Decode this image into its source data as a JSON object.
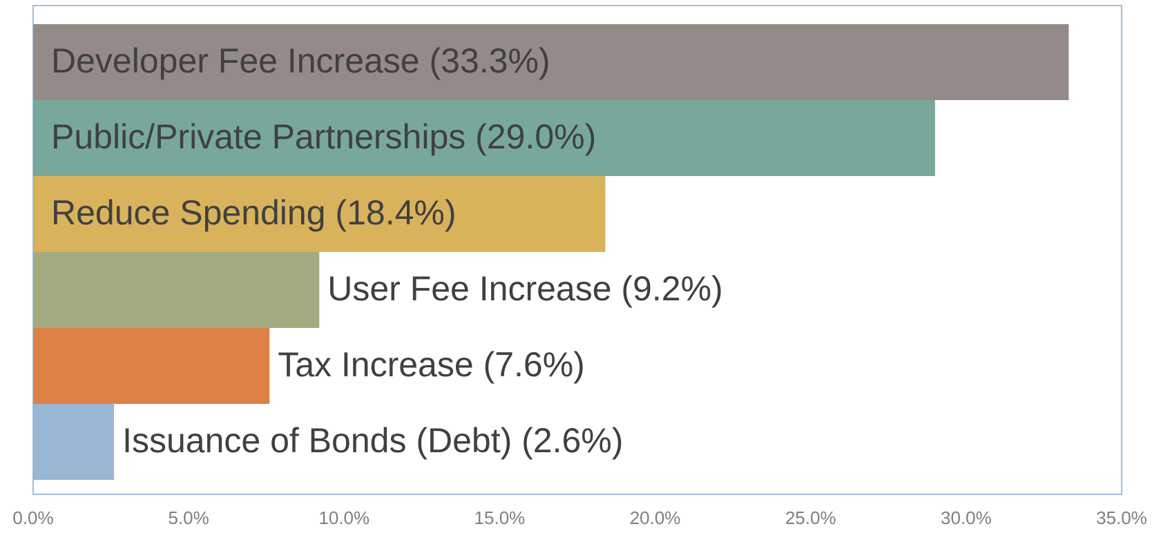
{
  "chart_data": {
    "type": "bar",
    "orientation": "horizontal",
    "categories": [
      "Developer Fee Increase (33.3%)",
      "Public/Private Partnerships (29.0%)",
      "Reduce Spending (18.4%)",
      "User Fee Increase (9.2%)",
      "Tax Increase (7.6%)",
      "Issuance of Bonds (Debt) (2.6%)"
    ],
    "values": [
      33.3,
      29.0,
      18.4,
      9.2,
      7.6,
      2.6
    ],
    "colors": [
      "#948b89",
      "#78a89c",
      "#d9b35c",
      "#a5ab80",
      "#dd8046",
      "#97b7d4"
    ],
    "xlim": [
      0,
      35
    ],
    "xticks": [
      {
        "value": 0,
        "label": "0.0%"
      },
      {
        "value": 5,
        "label": "5.0%"
      },
      {
        "value": 10,
        "label": "10.0%"
      },
      {
        "value": 15,
        "label": "15.0%"
      },
      {
        "value": 20,
        "label": "20.0%"
      },
      {
        "value": 25,
        "label": "25.0%"
      },
      {
        "value": 30,
        "label": "30.0%"
      },
      {
        "value": 35,
        "label": "35.0%"
      }
    ],
    "grid": false
  }
}
